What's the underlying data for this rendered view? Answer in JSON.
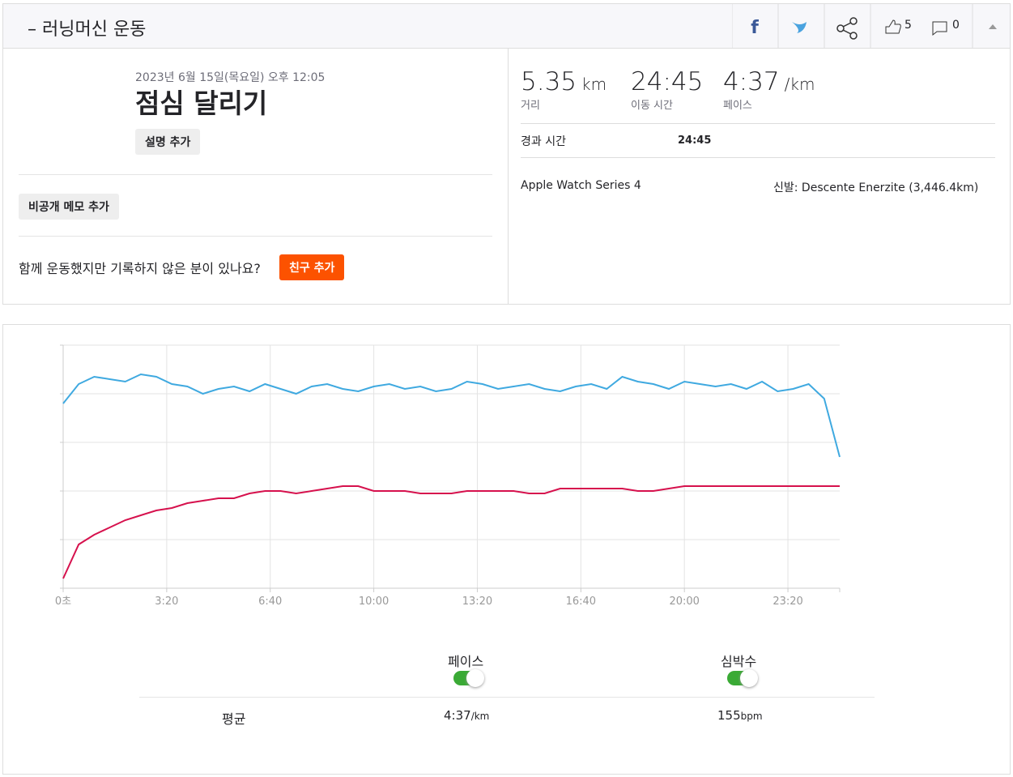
{
  "header": {
    "title": "– 러닝머신 운동",
    "kudos": "5",
    "comments": "0"
  },
  "workout": {
    "date": "2023년 6월 15일(목요일) 오후 12:05",
    "name": "점심 달리기",
    "add_description": "설명 추가",
    "add_private_note": "비공개 메모 추가",
    "friends_question": "함께 운동했지만 기록하지 않은 분이 있나요?",
    "add_friend": "친구 추가"
  },
  "stats": {
    "items": [
      {
        "value": "5.35",
        "unit": "km",
        "label": "거리"
      },
      {
        "value": "24:45",
        "label": "이동 시간"
      },
      {
        "value": "4:37",
        "unit": "/km",
        "label": "페이스"
      }
    ],
    "elapsed_label": "경과 시간",
    "elapsed_value": "24:45",
    "device": "Apple Watch Series 4",
    "shoes": "신발: Descente Enerzite (3,446.4km)"
  },
  "chart_data": {
    "type": "line",
    "x": [
      0,
      30,
      60,
      90,
      120,
      150,
      180,
      210,
      240,
      270,
      300,
      330,
      360,
      390,
      420,
      450,
      480,
      510,
      540,
      570,
      600,
      630,
      660,
      690,
      720,
      750,
      780,
      810,
      840,
      870,
      900,
      930,
      960,
      990,
      1020,
      1050,
      1080,
      1110,
      1140,
      1170,
      1200,
      1230,
      1260,
      1290,
      1320,
      1350,
      1380,
      1410,
      1440,
      1470,
      1500
    ],
    "series": [
      {
        "name": "페이스",
        "color": "#3fa9e0",
        "values": [
          76,
          84,
          87,
          86,
          85,
          88,
          87,
          84,
          83,
          80,
          82,
          83,
          81,
          84,
          82,
          80,
          83,
          84,
          82,
          81,
          83,
          84,
          82,
          83,
          81,
          82,
          85,
          84,
          82,
          83,
          84,
          82,
          81,
          83,
          84,
          82,
          87,
          85,
          84,
          82,
          85,
          84,
          83,
          84,
          82,
          85,
          81,
          82,
          84,
          78,
          54
        ]
      },
      {
        "name": "심박수",
        "color": "#d6114d",
        "values": [
          4,
          18,
          22,
          25,
          28,
          30,
          32,
          33,
          35,
          36,
          37,
          37,
          39,
          40,
          40,
          39,
          40,
          41,
          42,
          42,
          40,
          40,
          40,
          39,
          39,
          39,
          40,
          40,
          40,
          40,
          39,
          39,
          41,
          41,
          41,
          41,
          41,
          40,
          40,
          41,
          42,
          42,
          42,
          42,
          42,
          42,
          42,
          42,
          42,
          42,
          42
        ]
      }
    ],
    "xlim": [
      0,
      1500
    ],
    "xticks": [
      {
        "value": 0,
        "label": "0초"
      },
      {
        "value": 200,
        "label": "3:20"
      },
      {
        "value": 400,
        "label": "6:40"
      },
      {
        "value": 600,
        "label": "10:00"
      },
      {
        "value": 800,
        "label": "13:20"
      },
      {
        "value": 1000,
        "label": "16:40"
      },
      {
        "value": 1200,
        "label": "20:00"
      },
      {
        "value": 1400,
        "label": "23:20"
      }
    ],
    "ylim": [
      0,
      100
    ],
    "yticks": [
      0,
      20,
      40,
      60,
      80,
      100
    ],
    "grid": true
  },
  "summary": {
    "label": "평균",
    "pace": "4:37",
    "pace_unit": "/km",
    "heart_rate": "155",
    "heart_rate_unit": "bpm"
  }
}
